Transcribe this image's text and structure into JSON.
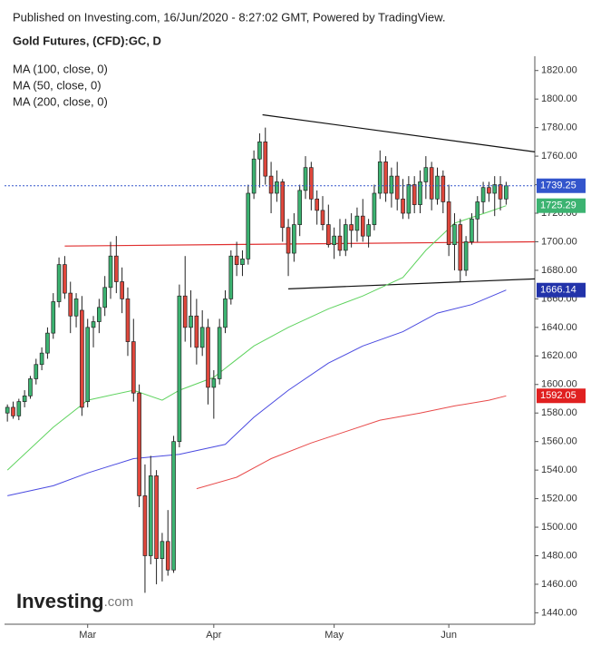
{
  "header": {
    "published": "Published on Investing.com, 16/Jun/2020 - 8:27:02 GMT, Powered by TradingView.",
    "logo_main": "Investing",
    "logo_suffix": ".com"
  },
  "chart_data": {
    "type": "candlestick",
    "title": "Gold Futures, (CFD):GC, D",
    "ylim": [
      1432,
      1830
    ],
    "xlim": [
      -0.5,
      92
    ],
    "yticks": [
      {
        "value": 1440,
        "label": "1440.00"
      },
      {
        "value": 1460,
        "label": "1460.00"
      },
      {
        "value": 1480,
        "label": "1480.00"
      },
      {
        "value": 1500,
        "label": "1500.00"
      },
      {
        "value": 1520,
        "label": "1520.00"
      },
      {
        "value": 1540,
        "label": "1540.00"
      },
      {
        "value": 1560,
        "label": "1560.00"
      },
      {
        "value": 1580,
        "label": "1580.00"
      },
      {
        "value": 1600,
        "label": "1600.00"
      },
      {
        "value": 1620,
        "label": "1620.00"
      },
      {
        "value": 1640,
        "label": "1640.00"
      },
      {
        "value": 1660,
        "label": "1660.00"
      },
      {
        "value": 1680,
        "label": "1680.00"
      },
      {
        "value": 1700,
        "label": "1700.00"
      },
      {
        "value": 1720,
        "label": "1720.00"
      },
      {
        "value": 1740,
        "label": "1740.00"
      },
      {
        "value": 1760,
        "label": "1760.00"
      },
      {
        "value": 1780,
        "label": "1780.00"
      },
      {
        "value": 1800,
        "label": "1800.00"
      },
      {
        "value": 1820,
        "label": "1820.00"
      }
    ],
    "xticks": [
      {
        "value": 14,
        "label": "Mar"
      },
      {
        "value": 36,
        "label": "Apr"
      },
      {
        "value": 57,
        "label": "May"
      },
      {
        "value": 77,
        "label": "Jun"
      }
    ],
    "up_color": "#3cb371",
    "down_color": "#e0473c",
    "open": [
      1580,
      1584,
      1578,
      1588,
      1592,
      1604,
      1614,
      1622,
      1636,
      1658,
      1684,
      1664,
      1648,
      1652,
      1588,
      1640,
      1644,
      1654,
      1668,
      1690,
      1672,
      1660,
      1630,
      1594,
      1522,
      1480,
      1536,
      1478,
      1490,
      1470,
      1560,
      1662,
      1640,
      1648,
      1626,
      1640,
      1598,
      1604,
      1640,
      1660,
      1690,
      1684,
      1688,
      1734,
      1758,
      1770,
      1746,
      1734,
      1742,
      1710,
      1692,
      1712,
      1736,
      1752,
      1730,
      1722,
      1712,
      1698,
      1704,
      1694,
      1712,
      1708,
      1718,
      1704,
      1712,
      1734,
      1756,
      1734,
      1746,
      1730,
      1720,
      1740,
      1726,
      1742,
      1752,
      1730,
      1746,
      1728,
      1698,
      1712,
      1680,
      1700,
      1716,
      1728,
      1738,
      1734,
      1740,
      1730
    ],
    "high": [
      1586,
      1588,
      1590,
      1596,
      1606,
      1618,
      1626,
      1640,
      1664,
      1689,
      1690,
      1672,
      1664,
      1662,
      1646,
      1648,
      1660,
      1676,
      1700,
      1704,
      1682,
      1668,
      1646,
      1600,
      1544,
      1550,
      1540,
      1496,
      1512,
      1564,
      1670,
      1690,
      1666,
      1660,
      1652,
      1646,
      1610,
      1646,
      1666,
      1694,
      1700,
      1694,
      1740,
      1764,
      1776,
      1780,
      1756,
      1750,
      1744,
      1716,
      1720,
      1740,
      1760,
      1756,
      1736,
      1732,
      1726,
      1710,
      1716,
      1716,
      1720,
      1724,
      1730,
      1716,
      1740,
      1764,
      1760,
      1752,
      1756,
      1744,
      1746,
      1746,
      1750,
      1760,
      1756,
      1752,
      1750,
      1740,
      1720,
      1716,
      1704,
      1720,
      1732,
      1742,
      1742,
      1746,
      1746,
      1742
    ],
    "low": [
      1574,
      1576,
      1575,
      1584,
      1590,
      1600,
      1610,
      1618,
      1632,
      1654,
      1660,
      1636,
      1640,
      1578,
      1584,
      1626,
      1636,
      1648,
      1660,
      1664,
      1650,
      1620,
      1588,
      1514,
      1454,
      1474,
      1460,
      1462,
      1466,
      1468,
      1556,
      1630,
      1626,
      1614,
      1620,
      1586,
      1576,
      1600,
      1636,
      1656,
      1676,
      1676,
      1684,
      1730,
      1738,
      1740,
      1720,
      1728,
      1700,
      1676,
      1686,
      1704,
      1730,
      1722,
      1712,
      1708,
      1696,
      1688,
      1690,
      1690,
      1696,
      1700,
      1700,
      1696,
      1708,
      1730,
      1728,
      1724,
      1722,
      1716,
      1716,
      1720,
      1720,
      1730,
      1722,
      1726,
      1720,
      1690,
      1680,
      1672,
      1676,
      1698,
      1700,
      1720,
      1728,
      1718,
      1722,
      1726
    ],
    "close": [
      1584,
      1578,
      1588,
      1592,
      1604,
      1614,
      1622,
      1636,
      1658,
      1684,
      1664,
      1648,
      1660,
      1584,
      1640,
      1644,
      1654,
      1668,
      1690,
      1672,
      1660,
      1630,
      1594,
      1522,
      1480,
      1536,
      1478,
      1490,
      1470,
      1560,
      1662,
      1640,
      1648,
      1626,
      1640,
      1598,
      1604,
      1640,
      1660,
      1690,
      1684,
      1688,
      1734,
      1758,
      1770,
      1746,
      1734,
      1742,
      1710,
      1692,
      1712,
      1736,
      1752,
      1730,
      1722,
      1712,
      1698,
      1704,
      1694,
      1712,
      1708,
      1718,
      1704,
      1712,
      1734,
      1756,
      1734,
      1746,
      1730,
      1720,
      1740,
      1726,
      1742,
      1752,
      1730,
      1746,
      1728,
      1698,
      1712,
      1680,
      1700,
      1716,
      1728,
      1738,
      1734,
      1740,
      1730,
      1739.25
    ],
    "series": [
      {
        "name": "MA (100, close, 0)",
        "color": "#4a4ae0",
        "label_color": "#2233aa",
        "x": [
          0,
          8,
          14,
          22,
          30,
          38,
          43,
          49,
          56,
          62,
          69,
          75,
          81,
          87
        ],
        "values": [
          1522,
          1529,
          1538,
          1548,
          1551,
          1558,
          1577,
          1596,
          1615,
          1627,
          1637,
          1650,
          1656,
          1666.14
        ]
      },
      {
        "name": "MA (50, close, 0)",
        "color": "#5fd35f",
        "label_color": "#3cb371",
        "x": [
          0,
          8,
          14,
          22,
          27,
          30,
          36,
          43,
          49,
          56,
          62,
          69,
          73,
          78,
          84,
          87
        ],
        "values": [
          1540,
          1570,
          1589,
          1596,
          1589,
          1596,
          1605,
          1627,
          1640,
          1653,
          1662,
          1675,
          1694,
          1713,
          1721,
          1725.29
        ]
      },
      {
        "name": "MA (200, close, 0)",
        "color": "#e84a4a",
        "label_color": "#e02020",
        "x": [
          33,
          40,
          46,
          53,
          59,
          65,
          72,
          78,
          84,
          87
        ],
        "values": [
          1527,
          1535,
          1548,
          1559,
          1567,
          1575,
          1580,
          1585,
          1589,
          1592.05
        ]
      }
    ],
    "trendlines": [
      {
        "color": "#111111",
        "x": [
          44.5,
          92
        ],
        "values": [
          1789,
          1763
        ]
      },
      {
        "color": "#111111",
        "x": [
          49,
          92
        ],
        "values": [
          1667,
          1674
        ]
      },
      {
        "color": "#e03030",
        "x": [
          10,
          92
        ],
        "values": [
          1697,
          1700
        ]
      }
    ],
    "last_price_color": "#3355cc"
  }
}
